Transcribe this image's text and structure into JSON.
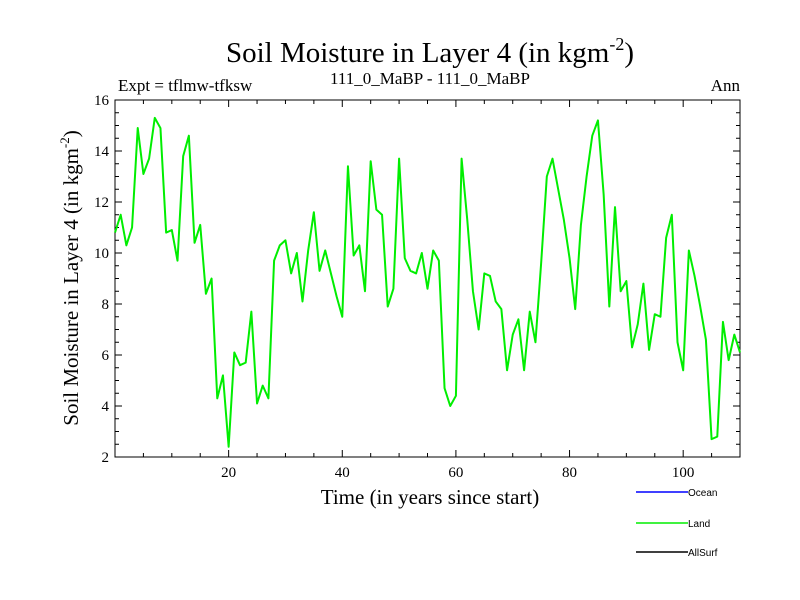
{
  "chart_data": {
    "type": "line",
    "title": "Soil Moisture in Layer 4 (in kgm",
    "title_sup": "-2",
    "title_close": ")",
    "subtitle_left": "Expt = tflmw-tfksw",
    "subtitle_center": "111_0_MaBP - 111_0_MaBP",
    "subtitle_right": "Ann",
    "xlabel": "Time (in years since start)",
    "ylabel": "Soil Moisture in Layer 4 (in kgm",
    "ylabel_sup": "-2",
    "ylabel_close": ")",
    "xlim": [
      0,
      110
    ],
    "ylim": [
      2,
      16
    ],
    "xticks": [
      20,
      40,
      60,
      80,
      100
    ],
    "yticks": [
      2,
      4,
      6,
      8,
      10,
      12,
      14,
      16
    ],
    "legend": [
      {
        "name": "Ocean",
        "color": "#0000ff"
      },
      {
        "name": "Land",
        "color": "#00ee00"
      },
      {
        "name": "AllSurf",
        "color": "#000000"
      }
    ],
    "series": [
      {
        "name": "Land",
        "color": "#00ee00",
        "x": [
          0,
          1,
          2,
          3,
          4,
          5,
          6,
          7,
          8,
          9,
          10,
          11,
          12,
          13,
          14,
          15,
          16,
          17,
          18,
          19,
          20,
          21,
          22,
          23,
          24,
          25,
          26,
          27,
          28,
          29,
          30,
          31,
          32,
          33,
          34,
          35,
          36,
          37,
          38,
          39,
          40,
          41,
          42,
          43,
          44,
          45,
          46,
          47,
          48,
          49,
          50,
          51,
          52,
          53,
          54,
          55,
          56,
          57,
          58,
          59,
          60,
          61,
          62,
          63,
          64,
          65,
          66,
          67,
          68,
          69,
          70,
          71,
          72,
          73,
          74,
          75,
          76,
          77,
          78,
          79,
          80,
          81,
          82,
          83,
          84,
          85,
          86,
          87,
          88,
          89,
          90,
          91,
          92,
          93,
          94,
          95,
          96,
          97,
          98,
          99,
          100,
          101,
          102,
          103,
          104,
          105,
          106,
          107,
          108,
          109,
          110
        ],
        "values": [
          10.8,
          11.5,
          10.3,
          11.0,
          14.9,
          13.1,
          13.7,
          15.3,
          14.9,
          10.8,
          10.9,
          9.7,
          13.8,
          14.6,
          10.4,
          11.1,
          8.4,
          9.0,
          4.3,
          5.2,
          2.4,
          6.1,
          5.6,
          5.7,
          7.7,
          4.1,
          4.8,
          4.3,
          9.7,
          10.3,
          10.5,
          9.2,
          10.0,
          8.1,
          10.1,
          11.6,
          9.3,
          10.1,
          9.2,
          8.3,
          7.5,
          13.4,
          9.9,
          10.3,
          8.5,
          13.6,
          11.7,
          11.5,
          7.9,
          8.6,
          13.7,
          9.8,
          9.3,
          9.2,
          10.0,
          8.6,
          10.1,
          9.7,
          4.7,
          4.0,
          4.4,
          13.7,
          11.3,
          8.5,
          7.0,
          9.2,
          9.1,
          8.1,
          7.8,
          5.4,
          6.8,
          7.4,
          5.4,
          7.7,
          6.5,
          9.6,
          13.0,
          13.7,
          12.5,
          11.3,
          9.8,
          7.8,
          11.1,
          13.0,
          14.6,
          15.2,
          12.3,
          7.9,
          11.8,
          8.5,
          8.9,
          6.3,
          7.2,
          8.8,
          6.2,
          7.6,
          7.5,
          10.6,
          11.5,
          6.5,
          5.4,
          10.1,
          9.1,
          7.9,
          6.6,
          2.7,
          2.8,
          7.3,
          5.8,
          6.8,
          6.1
        ]
      }
    ]
  }
}
